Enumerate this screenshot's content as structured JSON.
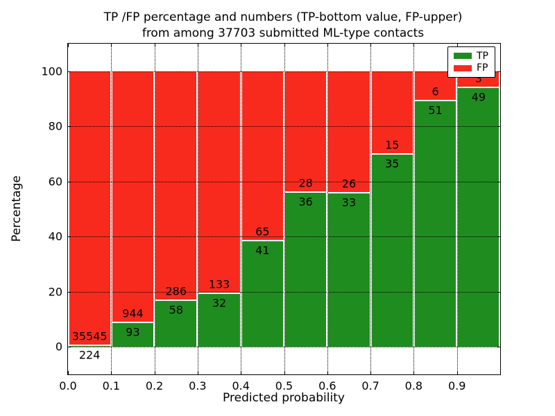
{
  "title": {
    "line1": "TP /FP percentage and numbers (TP-bottom value, FP-upper)",
    "line2": "from among 37703 submitted ML-type contacts"
  },
  "chart_data": {
    "type": "bar",
    "stacked": true,
    "normalization": "each bin stacked to 100%",
    "total_contacts": 37703,
    "bins": {
      "start": 0.0,
      "width": 0.1,
      "count": 10
    },
    "categories": [
      "0.0-0.1",
      "0.1-0.2",
      "0.2-0.3",
      "0.3-0.4",
      "0.4-0.5",
      "0.5-0.6",
      "0.6-0.7",
      "0.7-0.8",
      "0.8-0.9",
      "0.9-1.0"
    ],
    "series": [
      {
        "name": "TP",
        "color": "#1f8c1f",
        "counts": [
          224,
          93,
          58,
          32,
          41,
          36,
          33,
          35,
          51,
          49
        ]
      },
      {
        "name": "FP",
        "color": "#f82a1e",
        "counts": [
          35545,
          944,
          286,
          133,
          65,
          28,
          26,
          15,
          6,
          3
        ]
      }
    ],
    "bar_labels_note": "TP count printed just below segment boundary, FP count just above; FP label of last bin (3) hidden behind legend",
    "title": "TP /FP percentage and numbers (TP-bottom value, FP-upper) from among 37703 submitted ML-type contacts",
    "xlabel": "Predicted probability",
    "ylabel": "Percentage",
    "xlim": [
      0.0,
      1.0
    ],
    "ylim": [
      -10,
      110
    ],
    "xtick_values": [
      0.0,
      0.1,
      0.2,
      0.3,
      0.4,
      0.5,
      0.6,
      0.7,
      0.8,
      0.9
    ],
    "xtick_labels": [
      "0.0",
      "0.1",
      "0.2",
      "0.3",
      "0.4",
      "0.5",
      "0.6",
      "0.7",
      "0.8",
      "0.9"
    ],
    "ytick_values": [
      0,
      20,
      40,
      60,
      80,
      100
    ],
    "ytick_labels": [
      "0",
      "20",
      "40",
      "60",
      "80",
      "100"
    ],
    "grid": "dotted black, drawn over bars",
    "legend": {
      "position": "upper right",
      "entries": [
        {
          "label": "TP",
          "color": "#1f8c1f"
        },
        {
          "label": "FP",
          "color": "#f82a1e"
        }
      ]
    }
  }
}
